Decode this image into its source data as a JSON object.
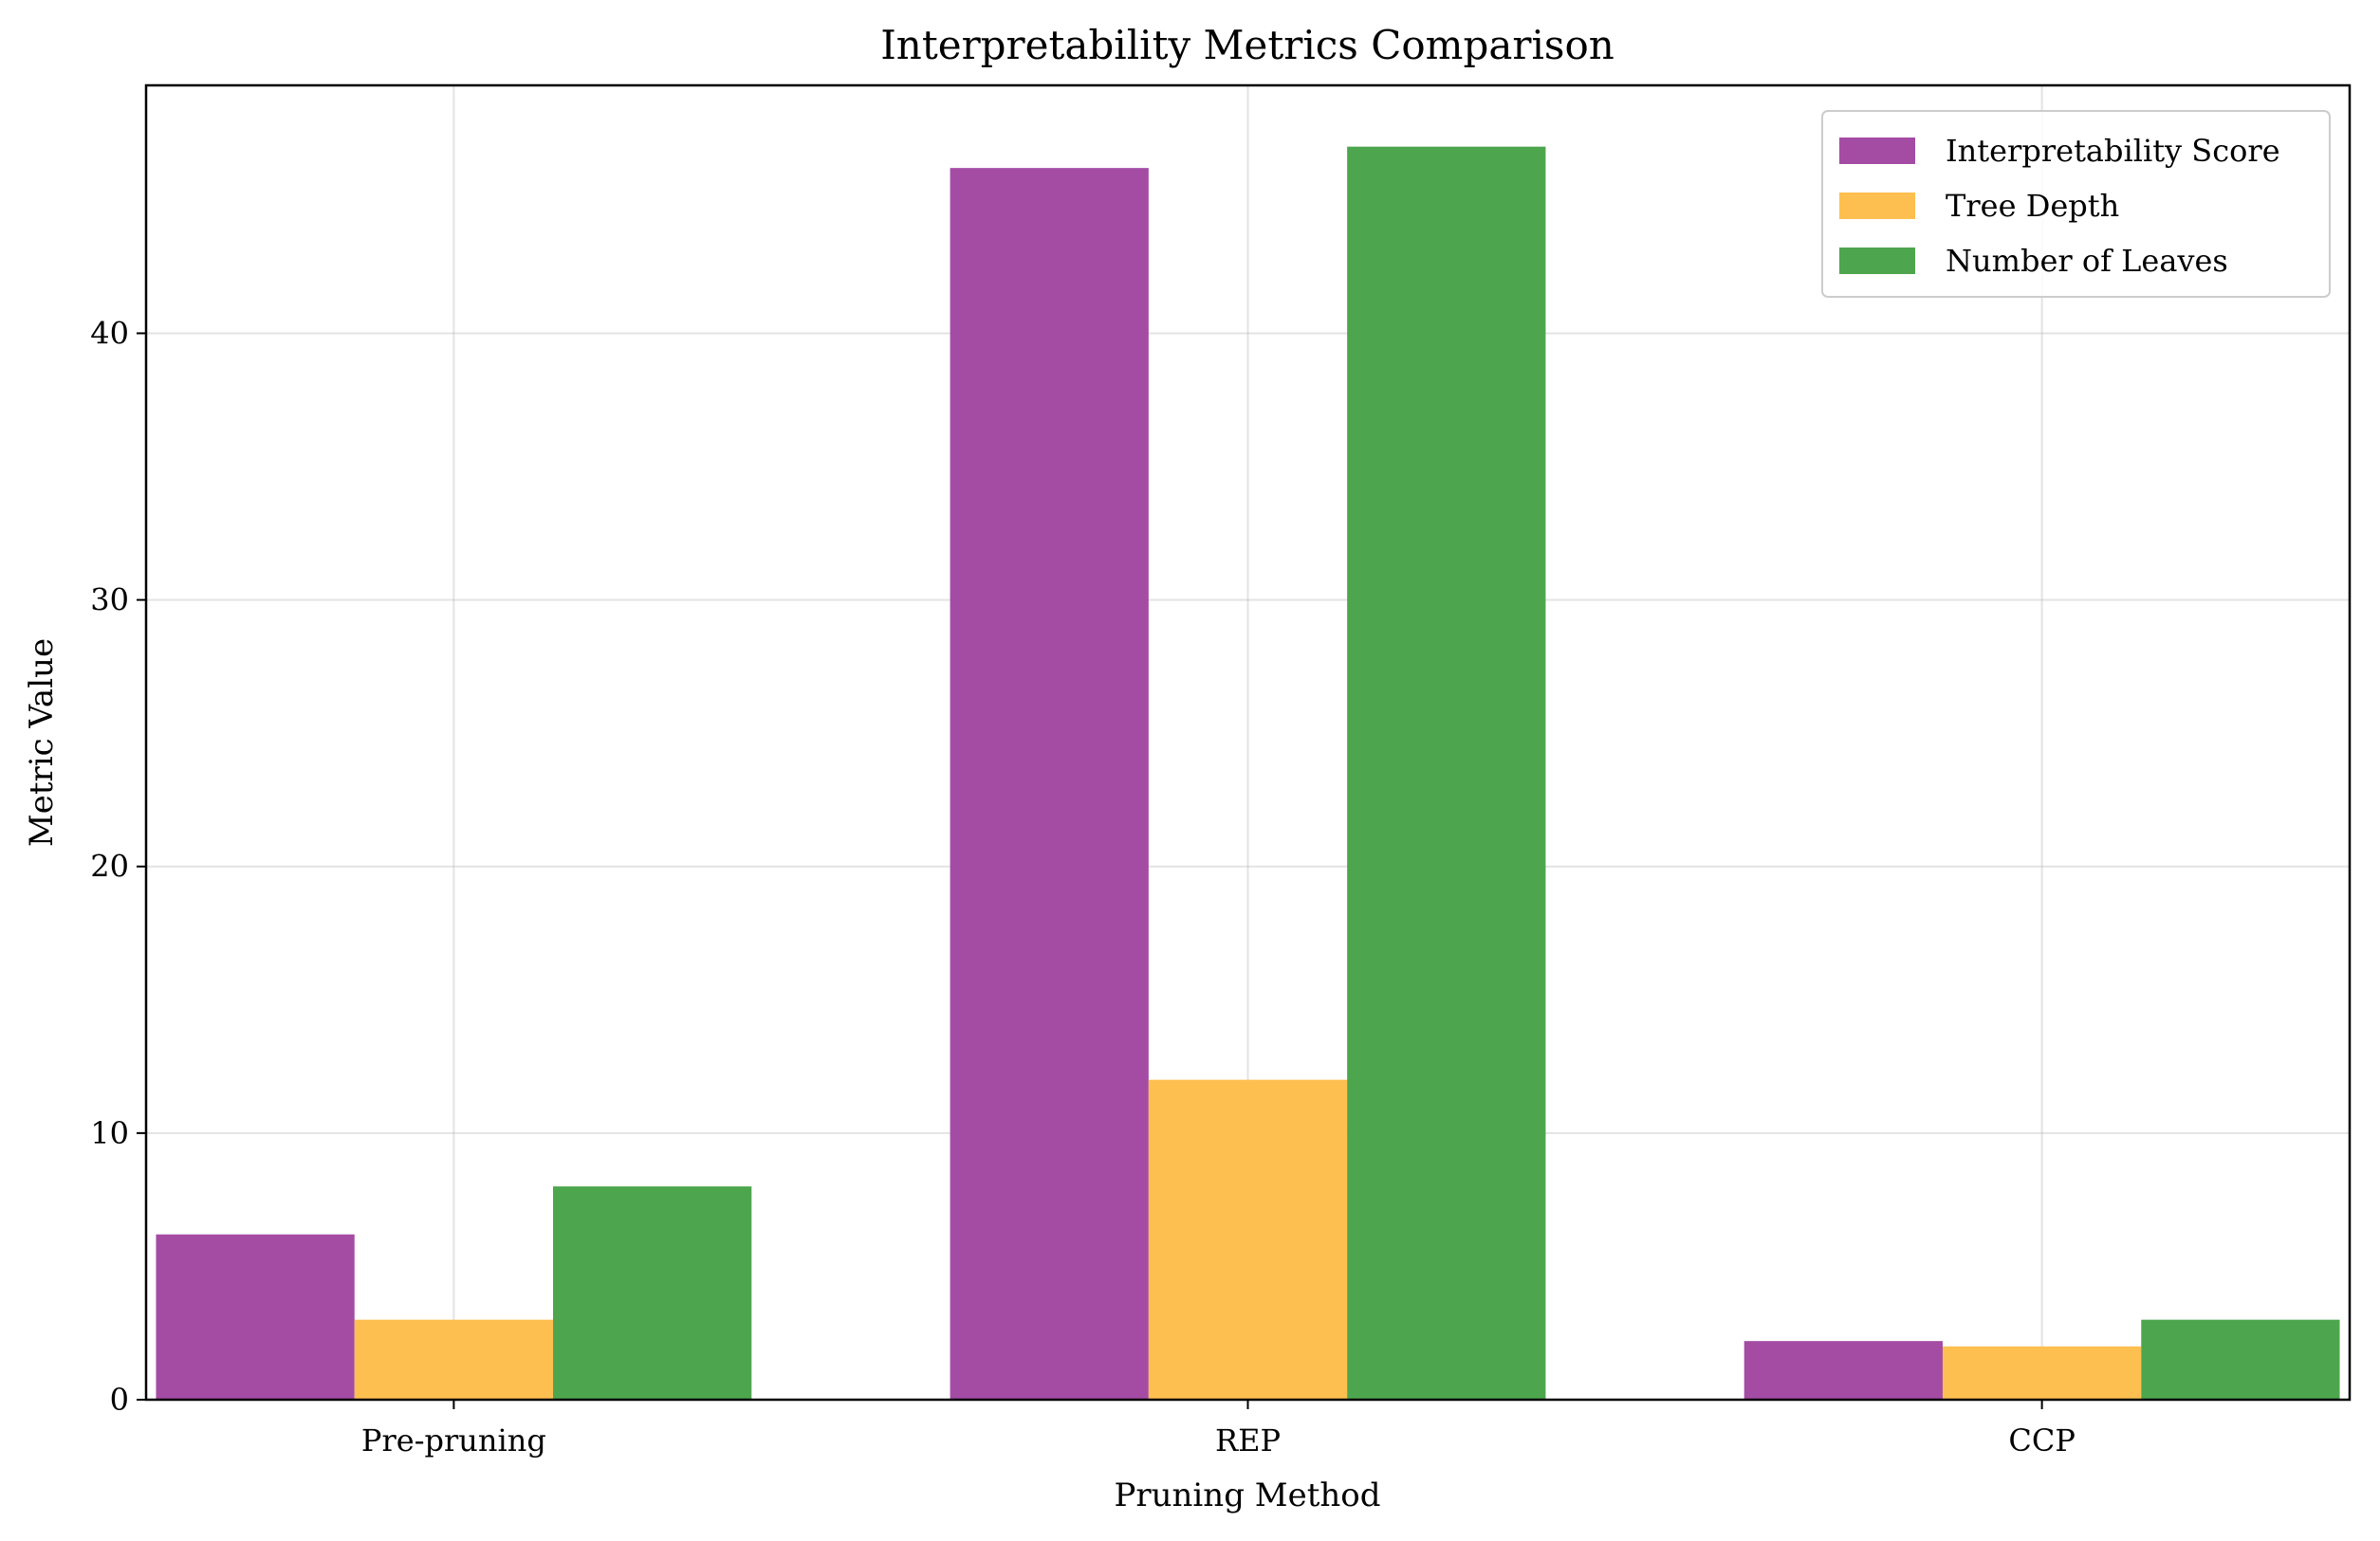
{
  "chart_data": {
    "type": "bar",
    "title": "Interpretability Metrics Comparison",
    "xlabel": "Pruning Method",
    "ylabel": "Metric Value",
    "categories": [
      "Pre-pruning",
      "REP",
      "CCP"
    ],
    "ylim": [
      0,
      49.3
    ],
    "yticks": [
      0,
      10,
      20,
      30,
      40
    ],
    "grid": true,
    "legend_position": "top-right",
    "series": [
      {
        "name": "Interpretability Score",
        "color": "#a44ca4",
        "values": [
          6.2,
          46.2,
          2.2
        ]
      },
      {
        "name": "Tree Depth",
        "color": "#fdbf4f",
        "values": [
          3,
          12,
          2
        ]
      },
      {
        "name": "Number of Leaves",
        "color": "#4da64d",
        "values": [
          8,
          47,
          3
        ]
      }
    ]
  }
}
